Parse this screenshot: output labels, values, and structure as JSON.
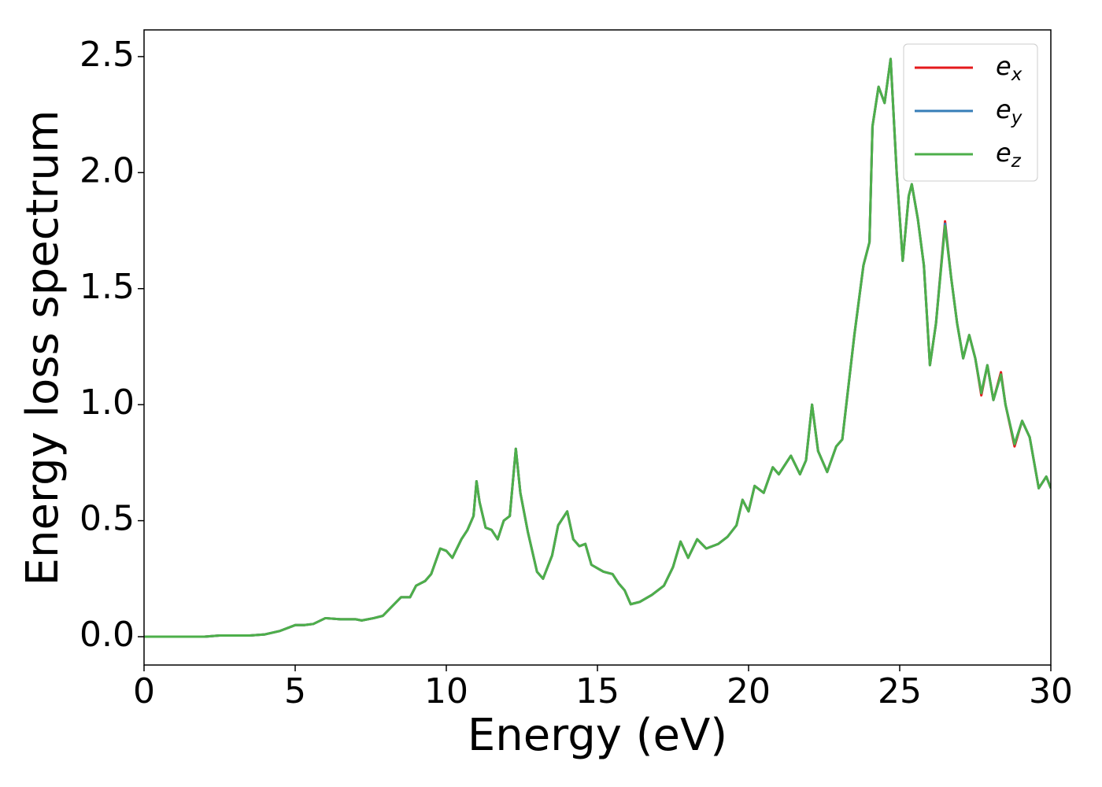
{
  "chart_data": {
    "type": "line",
    "xlabel": "Energy (eV)",
    "ylabel": "Energy loss spectrum",
    "xlim": [
      0,
      30
    ],
    "ylim": [
      -0.122,
      2.615
    ],
    "xticks": [
      0,
      5,
      10,
      15,
      20,
      25,
      30
    ],
    "yticks": [
      {
        "value": 0,
        "label": "0.0"
      },
      0.5,
      {
        "value": 1,
        "label": "1.0"
      },
      1.5,
      {
        "value": 2,
        "label": "2.0"
      },
      2.5
    ],
    "legend": "upper right",
    "x": [
      0,
      1,
      2,
      2.5,
      3,
      3.5,
      4,
      4.5,
      5,
      5.3,
      5.6,
      6,
      6.5,
      7,
      7.2,
      7.6,
      7.9,
      8.2,
      8.5,
      8.8,
      9,
      9.3,
      9.5,
      9.8,
      10,
      10.2,
      10.5,
      10.7,
      10.9,
      11,
      11.1,
      11.3,
      11.5,
      11.7,
      11.9,
      12.1,
      12.3,
      12.45,
      12.7,
      13,
      13.2,
      13.5,
      13.7,
      13.9,
      14,
      14.2,
      14.4,
      14.6,
      14.8,
      15.2,
      15.5,
      15.7,
      15.9,
      16.1,
      16.4,
      16.8,
      17.2,
      17.5,
      17.75,
      18,
      18.3,
      18.6,
      19,
      19.3,
      19.6,
      19.8,
      20,
      20.2,
      20.5,
      20.8,
      21,
      21.4,
      21.7,
      21.9,
      22.1,
      22.3,
      22.6,
      22.9,
      23.1,
      23.5,
      23.8,
      24,
      24.1,
      24.3,
      24.5,
      24.7,
      24.9,
      25.1,
      25.3,
      25.4,
      25.6,
      25.8,
      26,
      26.2,
      26.5,
      26.7,
      26.9,
      27.1,
      27.3,
      27.5,
      27.7,
      27.9,
      28.1,
      28.35,
      28.5,
      28.8,
      29.05,
      29.3,
      29.6,
      29.85,
      30
    ],
    "series": [
      {
        "name": "ex",
        "color": "#e41a1c",
        "values": [
          0,
          0,
          0,
          0.005,
          0.005,
          0.005,
          0.01,
          0.025,
          0.05,
          0.05,
          0.055,
          0.08,
          0.075,
          0.075,
          0.07,
          0.08,
          0.09,
          0.13,
          0.17,
          0.17,
          0.22,
          0.24,
          0.27,
          0.38,
          0.37,
          0.34,
          0.42,
          0.46,
          0.52,
          0.67,
          0.58,
          0.47,
          0.46,
          0.42,
          0.5,
          0.52,
          0.81,
          0.62,
          0.45,
          0.28,
          0.25,
          0.35,
          0.48,
          0.52,
          0.54,
          0.42,
          0.39,
          0.4,
          0.31,
          0.28,
          0.27,
          0.23,
          0.2,
          0.14,
          0.15,
          0.18,
          0.22,
          0.3,
          0.41,
          0.34,
          0.42,
          0.38,
          0.4,
          0.43,
          0.48,
          0.59,
          0.54,
          0.65,
          0.62,
          0.73,
          0.7,
          0.78,
          0.7,
          0.76,
          1.0,
          0.8,
          0.71,
          0.82,
          0.85,
          1.3,
          1.6,
          1.7,
          2.2,
          2.37,
          2.3,
          2.49,
          2.0,
          1.62,
          1.9,
          1.95,
          1.8,
          1.6,
          1.17,
          1.35,
          1.79,
          1.55,
          1.35,
          1.2,
          1.3,
          1.2,
          1.04,
          1.17,
          1.02,
          1.14,
          1.0,
          0.82,
          0.93,
          0.86,
          0.64,
          0.69,
          0.64
        ]
      },
      {
        "name": "ey",
        "color": "#377eb8",
        "values": [
          0,
          0,
          0,
          0.005,
          0.005,
          0.005,
          0.01,
          0.025,
          0.05,
          0.05,
          0.055,
          0.08,
          0.075,
          0.075,
          0.07,
          0.08,
          0.09,
          0.13,
          0.17,
          0.17,
          0.22,
          0.24,
          0.27,
          0.38,
          0.37,
          0.34,
          0.42,
          0.46,
          0.52,
          0.67,
          0.58,
          0.47,
          0.46,
          0.42,
          0.5,
          0.52,
          0.81,
          0.62,
          0.45,
          0.28,
          0.25,
          0.35,
          0.48,
          0.52,
          0.54,
          0.42,
          0.39,
          0.4,
          0.31,
          0.28,
          0.27,
          0.23,
          0.2,
          0.14,
          0.15,
          0.18,
          0.22,
          0.3,
          0.41,
          0.34,
          0.42,
          0.38,
          0.4,
          0.43,
          0.48,
          0.59,
          0.54,
          0.65,
          0.62,
          0.73,
          0.7,
          0.78,
          0.7,
          0.76,
          1.0,
          0.8,
          0.71,
          0.82,
          0.85,
          1.3,
          1.6,
          1.7,
          2.2,
          2.37,
          2.3,
          2.49,
          2.0,
          1.62,
          1.9,
          1.95,
          1.8,
          1.6,
          1.17,
          1.35,
          1.78,
          1.55,
          1.35,
          1.2,
          1.3,
          1.2,
          1.05,
          1.17,
          1.02,
          1.13,
          1.0,
          0.83,
          0.93,
          0.86,
          0.64,
          0.69,
          0.64
        ]
      },
      {
        "name": "ez",
        "color": "#4daf4a",
        "values": [
          0,
          0,
          0,
          0.005,
          0.005,
          0.005,
          0.01,
          0.025,
          0.05,
          0.05,
          0.055,
          0.08,
          0.075,
          0.075,
          0.07,
          0.08,
          0.09,
          0.13,
          0.17,
          0.17,
          0.22,
          0.24,
          0.27,
          0.38,
          0.37,
          0.34,
          0.42,
          0.46,
          0.52,
          0.67,
          0.58,
          0.47,
          0.46,
          0.42,
          0.5,
          0.52,
          0.81,
          0.62,
          0.45,
          0.28,
          0.25,
          0.35,
          0.48,
          0.52,
          0.54,
          0.42,
          0.39,
          0.4,
          0.31,
          0.28,
          0.27,
          0.23,
          0.2,
          0.14,
          0.15,
          0.18,
          0.22,
          0.3,
          0.41,
          0.34,
          0.42,
          0.38,
          0.4,
          0.43,
          0.48,
          0.59,
          0.54,
          0.65,
          0.62,
          0.73,
          0.7,
          0.78,
          0.7,
          0.76,
          1.0,
          0.8,
          0.71,
          0.82,
          0.85,
          1.3,
          1.6,
          1.7,
          2.2,
          2.37,
          2.3,
          2.49,
          2.0,
          1.62,
          1.9,
          1.95,
          1.8,
          1.6,
          1.17,
          1.35,
          1.77,
          1.55,
          1.35,
          1.2,
          1.3,
          1.2,
          1.05,
          1.17,
          1.02,
          1.13,
          1.0,
          0.83,
          0.93,
          0.86,
          0.64,
          0.69,
          0.64
        ]
      }
    ]
  }
}
